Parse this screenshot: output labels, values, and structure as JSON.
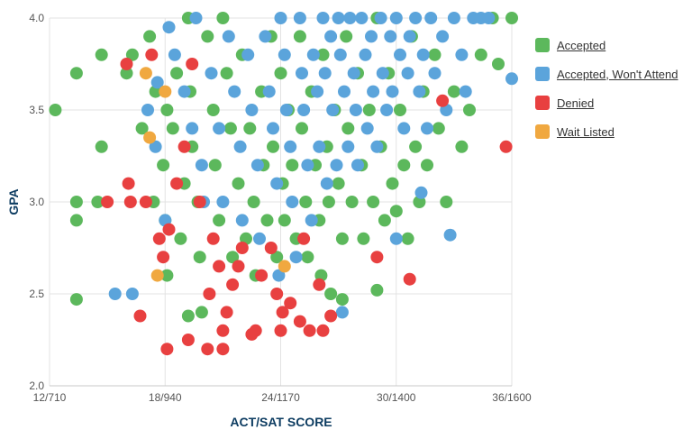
{
  "colors": {
    "accepted": "#5cb85c",
    "accepted_wont_attend": "#5ba4db",
    "denied": "#e84040",
    "wait_listed": "#f0a840",
    "grid": "#e3e3e3",
    "axis_title": "#0d3c61"
  },
  "legend": [
    {
      "key": "accepted",
      "label": "Accepted"
    },
    {
      "key": "accepted_wont_attend",
      "label": "Accepted, Won't Attend"
    },
    {
      "key": "denied",
      "label": "Denied"
    },
    {
      "key": "wait_listed",
      "label": "Wait Listed"
    }
  ],
  "chart_data": {
    "type": "scatter",
    "title": "",
    "xlabel": "ACT/SAT SCORE",
    "ylabel": "GPA",
    "xlim": [
      12,
      36
    ],
    "ylim": [
      2.0,
      4.0
    ],
    "x_ticks": [
      {
        "value": 12,
        "label": "12/710"
      },
      {
        "value": 18,
        "label": "18/940"
      },
      {
        "value": 24,
        "label": "24/1170"
      },
      {
        "value": 30,
        "label": "30/1400"
      },
      {
        "value": 36,
        "label": "36/1600"
      }
    ],
    "y_ticks": [
      {
        "value": 2.0,
        "label": "2.0"
      },
      {
        "value": 2.5,
        "label": "2.5"
      },
      {
        "value": 3.0,
        "label": "3.0"
      },
      {
        "value": 3.5,
        "label": "3.5"
      },
      {
        "value": 4.0,
        "label": "4.0"
      }
    ],
    "grid": true,
    "legend_position": "right",
    "series": [
      {
        "name": "Accepted",
        "key": "accepted",
        "points": [
          [
            12.3,
            3.5
          ],
          [
            13.4,
            3.7
          ],
          [
            13.4,
            3.0
          ],
          [
            13.4,
            2.9
          ],
          [
            13.4,
            2.47
          ],
          [
            14.5,
            3.0
          ],
          [
            14.7,
            3.3
          ],
          [
            14.7,
            3.8
          ],
          [
            16.0,
            3.7
          ],
          [
            16.3,
            3.8
          ],
          [
            16.8,
            3.4
          ],
          [
            17.2,
            3.9
          ],
          [
            17.5,
            3.6
          ],
          [
            17.4,
            3.0
          ],
          [
            17.9,
            3.2
          ],
          [
            18.1,
            3.5
          ],
          [
            18.0,
            2.9
          ],
          [
            18.1,
            2.6
          ],
          [
            18.4,
            3.4
          ],
          [
            18.6,
            3.7
          ],
          [
            18.8,
            2.8
          ],
          [
            19.0,
            3.1
          ],
          [
            19.2,
            4.0
          ],
          [
            19.3,
            3.6
          ],
          [
            19.4,
            3.3
          ],
          [
            19.7,
            3.0
          ],
          [
            19.8,
            2.7
          ],
          [
            19.9,
            2.4
          ],
          [
            20.2,
            3.9
          ],
          [
            20.5,
            3.5
          ],
          [
            20.6,
            3.2
          ],
          [
            20.8,
            2.9
          ],
          [
            21.0,
            4.0
          ],
          [
            21.2,
            3.7
          ],
          [
            21.4,
            3.4
          ],
          [
            21.5,
            2.7
          ],
          [
            21.8,
            3.1
          ],
          [
            22.0,
            3.8
          ],
          [
            22.2,
            2.8
          ],
          [
            22.4,
            3.4
          ],
          [
            22.6,
            3.0
          ],
          [
            22.7,
            2.6
          ],
          [
            23.0,
            3.6
          ],
          [
            23.1,
            3.2
          ],
          [
            23.3,
            2.9
          ],
          [
            23.5,
            3.9
          ],
          [
            23.6,
            3.3
          ],
          [
            23.8,
            2.7
          ],
          [
            24.0,
            3.7
          ],
          [
            24.1,
            3.1
          ],
          [
            24.2,
            2.9
          ],
          [
            24.4,
            3.5
          ],
          [
            24.6,
            3.2
          ],
          [
            24.8,
            2.8
          ],
          [
            25.0,
            3.9
          ],
          [
            25.1,
            3.4
          ],
          [
            25.3,
            3.0
          ],
          [
            25.4,
            2.7
          ],
          [
            25.6,
            3.6
          ],
          [
            25.8,
            3.2
          ],
          [
            26.0,
            2.9
          ],
          [
            26.1,
            2.6
          ],
          [
            26.2,
            3.8
          ],
          [
            26.4,
            3.3
          ],
          [
            26.5,
            3.0
          ],
          [
            26.6,
            2.5
          ],
          [
            26.8,
            3.5
          ],
          [
            27.0,
            3.1
          ],
          [
            27.2,
            2.8
          ],
          [
            27.4,
            3.9
          ],
          [
            27.5,
            3.4
          ],
          [
            27.7,
            3.0
          ],
          [
            28.0,
            3.7
          ],
          [
            28.2,
            3.2
          ],
          [
            28.3,
            2.8
          ],
          [
            28.6,
            3.5
          ],
          [
            28.8,
            3.0
          ],
          [
            29.0,
            4.0
          ],
          [
            29.2,
            3.3
          ],
          [
            29.4,
            2.9
          ],
          [
            29.6,
            3.7
          ],
          [
            29.8,
            3.1
          ],
          [
            30.0,
            2.95
          ],
          [
            30.2,
            3.5
          ],
          [
            30.4,
            3.2
          ],
          [
            30.6,
            2.8
          ],
          [
            30.8,
            3.9
          ],
          [
            31.0,
            3.3
          ],
          [
            31.2,
            3.0
          ],
          [
            31.4,
            3.6
          ],
          [
            31.6,
            3.2
          ],
          [
            32.0,
            3.8
          ],
          [
            32.2,
            3.4
          ],
          [
            32.6,
            3.0
          ],
          [
            33.0,
            3.6
          ],
          [
            33.4,
            3.3
          ],
          [
            33.8,
            3.5
          ],
          [
            34.4,
            3.8
          ],
          [
            35.0,
            4.0
          ],
          [
            35.3,
            3.75
          ],
          [
            36.0,
            4.0
          ],
          [
            29.0,
            2.52
          ],
          [
            27.2,
            2.47
          ],
          [
            19.2,
            2.38
          ]
        ]
      },
      {
        "name": "Accepted, Won't Attend",
        "key": "accepted_wont_attend",
        "points": [
          [
            15.4,
            2.5
          ],
          [
            16.3,
            2.5
          ],
          [
            17.1,
            3.5
          ],
          [
            17.5,
            3.3
          ],
          [
            17.6,
            3.65
          ],
          [
            18.0,
            2.9
          ],
          [
            18.2,
            3.95
          ],
          [
            18.5,
            3.8
          ],
          [
            19.0,
            3.6
          ],
          [
            19.4,
            3.4
          ],
          [
            19.6,
            4.0
          ],
          [
            19.9,
            3.2
          ],
          [
            20.0,
            3.0
          ],
          [
            20.4,
            3.7
          ],
          [
            20.8,
            3.4
          ],
          [
            21.0,
            3.0
          ],
          [
            21.3,
            3.9
          ],
          [
            21.6,
            3.6
          ],
          [
            21.9,
            3.3
          ],
          [
            22.0,
            2.9
          ],
          [
            22.3,
            3.8
          ],
          [
            22.5,
            3.5
          ],
          [
            22.8,
            3.2
          ],
          [
            22.9,
            2.8
          ],
          [
            23.2,
            3.9
          ],
          [
            23.4,
            3.6
          ],
          [
            23.6,
            3.4
          ],
          [
            23.8,
            3.1
          ],
          [
            23.9,
            2.6
          ],
          [
            24.0,
            4.0
          ],
          [
            24.2,
            3.8
          ],
          [
            24.3,
            3.5
          ],
          [
            24.5,
            3.3
          ],
          [
            24.6,
            3.0
          ],
          [
            24.8,
            2.7
          ],
          [
            25.0,
            4.0
          ],
          [
            25.1,
            3.7
          ],
          [
            25.2,
            3.5
          ],
          [
            25.4,
            3.2
          ],
          [
            25.6,
            2.9
          ],
          [
            25.7,
            3.8
          ],
          [
            25.9,
            3.6
          ],
          [
            26.0,
            3.3
          ],
          [
            26.2,
            4.0
          ],
          [
            26.3,
            3.7
          ],
          [
            26.4,
            3.1
          ],
          [
            26.6,
            3.9
          ],
          [
            26.7,
            3.5
          ],
          [
            26.9,
            3.2
          ],
          [
            27.0,
            4.0
          ],
          [
            27.1,
            3.8
          ],
          [
            27.2,
            2.4
          ],
          [
            27.3,
            3.6
          ],
          [
            27.5,
            3.3
          ],
          [
            27.6,
            4.0
          ],
          [
            27.8,
            3.7
          ],
          [
            27.9,
            3.5
          ],
          [
            28.0,
            3.2
          ],
          [
            28.2,
            4.0
          ],
          [
            28.4,
            3.8
          ],
          [
            28.5,
            3.4
          ],
          [
            28.7,
            3.9
          ],
          [
            28.8,
            3.6
          ],
          [
            29.0,
            3.3
          ],
          [
            29.2,
            4.0
          ],
          [
            29.3,
            3.7
          ],
          [
            29.5,
            3.5
          ],
          [
            29.7,
            3.9
          ],
          [
            29.8,
            3.6
          ],
          [
            30.0,
            4.0
          ],
          [
            30.2,
            3.8
          ],
          [
            30.4,
            3.4
          ],
          [
            30.6,
            3.7
          ],
          [
            30.7,
            3.9
          ],
          [
            31.0,
            4.0
          ],
          [
            31.2,
            3.6
          ],
          [
            31.4,
            3.8
          ],
          [
            31.6,
            3.4
          ],
          [
            31.8,
            4.0
          ],
          [
            32.0,
            3.7
          ],
          [
            32.4,
            3.9
          ],
          [
            32.6,
            3.5
          ],
          [
            32.8,
            2.82
          ],
          [
            33.0,
            4.0
          ],
          [
            33.4,
            3.8
          ],
          [
            33.6,
            3.6
          ],
          [
            34.0,
            4.0
          ],
          [
            34.4,
            4.0
          ],
          [
            34.8,
            4.0
          ],
          [
            36.0,
            3.67
          ],
          [
            30.0,
            2.8
          ],
          [
            31.3,
            3.05
          ]
        ]
      },
      {
        "name": "Denied",
        "key": "denied",
        "points": [
          [
            15.0,
            3.0
          ],
          [
            16.0,
            3.75
          ],
          [
            16.1,
            3.1
          ],
          [
            16.2,
            3.0
          ],
          [
            16.7,
            2.38
          ],
          [
            17.0,
            3.0
          ],
          [
            17.3,
            3.8
          ],
          [
            17.7,
            2.8
          ],
          [
            17.9,
            2.7
          ],
          [
            18.1,
            2.2
          ],
          [
            18.2,
            2.85
          ],
          [
            18.6,
            3.1
          ],
          [
            19.0,
            3.3
          ],
          [
            19.2,
            2.25
          ],
          [
            19.4,
            3.75
          ],
          [
            19.8,
            3.0
          ],
          [
            20.2,
            2.2
          ],
          [
            20.3,
            2.5
          ],
          [
            20.5,
            2.8
          ],
          [
            20.8,
            2.65
          ],
          [
            21.0,
            2.3
          ],
          [
            21.0,
            2.2
          ],
          [
            21.2,
            2.4
          ],
          [
            21.5,
            2.55
          ],
          [
            21.8,
            2.65
          ],
          [
            22.0,
            2.75
          ],
          [
            22.5,
            2.28
          ],
          [
            22.7,
            2.3
          ],
          [
            23.0,
            2.6
          ],
          [
            23.5,
            2.75
          ],
          [
            23.8,
            2.5
          ],
          [
            24.0,
            2.3
          ],
          [
            24.1,
            2.4
          ],
          [
            24.5,
            2.45
          ],
          [
            25.0,
            2.35
          ],
          [
            25.2,
            2.8
          ],
          [
            25.5,
            2.3
          ],
          [
            26.0,
            2.55
          ],
          [
            26.2,
            2.3
          ],
          [
            26.6,
            2.38
          ],
          [
            29.0,
            2.7
          ],
          [
            30.7,
            2.58
          ],
          [
            32.4,
            3.55
          ],
          [
            35.7,
            3.3
          ]
        ]
      },
      {
        "name": "Wait Listed",
        "key": "wait_listed",
        "points": [
          [
            17.0,
            3.7
          ],
          [
            17.2,
            3.35
          ],
          [
            17.6,
            2.6
          ],
          [
            18.0,
            3.6
          ],
          [
            24.2,
            2.65
          ]
        ]
      }
    ]
  }
}
